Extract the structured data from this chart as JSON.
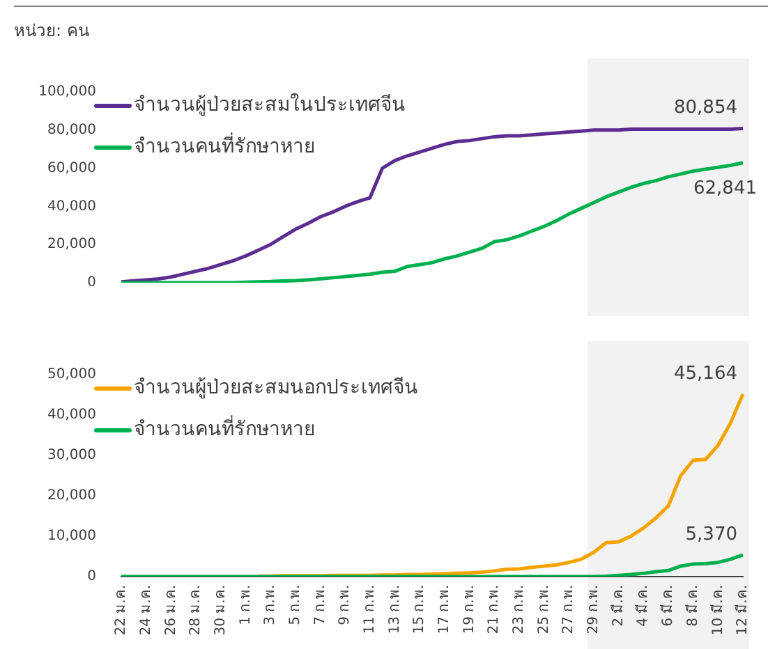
{
  "chart_data": [
    {
      "type": "line",
      "subtitle": "หน่วย: คน",
      "categories": [
        "22 ม.ค.",
        null,
        "24 ม.ค.",
        null,
        "26 ม.ค.",
        null,
        "28 ม.ค.",
        null,
        "30 ม.ค.",
        null,
        "1 ก.พ.",
        null,
        "3 ก.พ.",
        null,
        "5 ก.พ.",
        null,
        "7 ก.พ.",
        null,
        "9 ก.พ.",
        null,
        "11 ก.พ.",
        null,
        "13 ก.พ.",
        null,
        "15 ก.พ.",
        null,
        "17 ก.พ.",
        null,
        "19 ก.พ.",
        null,
        "21 ก.พ.",
        null,
        "23 ก.พ.",
        null,
        "25 ก.พ.",
        null,
        "27 ก.พ.",
        null,
        "29 ก.พ.",
        null,
        "2 มี.ค.",
        null,
        "4 มี.ค.",
        null,
        "6 มี.ค.",
        null,
        "8 มี.ค.",
        null,
        "10 มี.ค.",
        null,
        "12 มี.ค."
      ],
      "series": [
        {
          "name": "จำนวนผู้ป่วยสะสมในประเทศจีน",
          "color": "#5b2d90",
          "values": [
            500,
            1000,
            1500,
            2000,
            3000,
            4500,
            6000,
            7500,
            9500,
            11500,
            14000,
            17000,
            20000,
            24000,
            28000,
            31000,
            34500,
            37000,
            40000,
            42500,
            44500,
            60000,
            64000,
            66500,
            68500,
            70500,
            72500,
            74000,
            74500,
            75500,
            76500,
            77000,
            77000,
            77500,
            78000,
            78500,
            79000,
            79500,
            80000,
            80000,
            80000,
            80500,
            80500,
            80500,
            80500,
            80500,
            80500,
            80500,
            80500,
            80500,
            80854
          ],
          "value_labels": [
            null,
            null,
            null,
            null,
            null,
            null,
            null,
            null,
            null,
            null,
            null,
            null,
            null,
            null,
            null,
            null,
            null,
            null,
            null,
            null,
            null,
            null,
            null,
            null,
            null,
            null,
            null,
            null,
            null,
            null,
            null,
            null,
            null,
            null,
            null,
            null,
            null,
            null,
            null,
            null,
            null,
            null,
            null,
            null,
            null,
            null,
            null,
            null,
            null,
            null,
            "80,854"
          ]
        },
        {
          "name": "จำนวนคนที่รักษาหาย",
          "color": "#00b04f",
          "values": [
            0,
            0,
            0,
            0,
            0,
            0,
            0,
            0,
            0,
            0,
            300,
            500,
            600,
            900,
            1100,
            1500,
            2000,
            2600,
            3200,
            3800,
            4500,
            5500,
            6000,
            8500,
            9500,
            10500,
            12500,
            14000,
            16000,
            18000,
            21500,
            22500,
            24500,
            27000,
            29500,
            32500,
            36000,
            39000,
            42000,
            45000,
            47500,
            50000,
            52000,
            53500,
            55500,
            57000,
            58500,
            59500,
            60500,
            61500,
            62841
          ],
          "value_labels": [
            null,
            null,
            null,
            null,
            null,
            null,
            null,
            null,
            null,
            null,
            null,
            null,
            null,
            null,
            null,
            null,
            null,
            null,
            null,
            null,
            null,
            null,
            null,
            null,
            null,
            null,
            null,
            null,
            null,
            null,
            null,
            null,
            null,
            null,
            null,
            null,
            null,
            null,
            null,
            null,
            null,
            null,
            null,
            null,
            null,
            null,
            null,
            null,
            null,
            null,
            "62,841"
          ]
        }
      ],
      "ylim": [
        0,
        100000
      ],
      "yticks": [
        0,
        {
          "value": 20000,
          "label": "20,000"
        },
        {
          "value": 40000,
          "label": "40,000"
        },
        {
          "value": 60000,
          "label": "60,000"
        },
        {
          "value": 80000,
          "label": "80,000"
        },
        {
          "value": 100000,
          "label": "100,000"
        }
      ],
      "grid": false,
      "legend": "top left",
      "tick_labels": "y",
      "marker": "none",
      "line_style": "solid",
      "bands": [
        {
          "axis": "x",
          "from": "29 ก.พ.",
          "to": "12 มี.ค.",
          "color": "#f2f2f2"
        }
      ]
    },
    {
      "type": "line",
      "categories": [
        "22 ม.ค.",
        null,
        "24 ม.ค.",
        null,
        "26 ม.ค.",
        null,
        "28 ม.ค.",
        null,
        "30 ม.ค.",
        null,
        "1 ก.พ.",
        null,
        "3 ก.พ.",
        null,
        "5 ก.พ.",
        null,
        "7 ก.พ.",
        null,
        "9 ก.พ.",
        null,
        "11 ก.พ.",
        null,
        "13 ก.พ.",
        null,
        "15 ก.พ.",
        null,
        "17 ก.พ.",
        null,
        "19 ก.พ.",
        null,
        "21 ก.พ.",
        null,
        "23 ก.พ.",
        null,
        "25 ก.พ.",
        null,
        "27 ก.พ.",
        null,
        "29 ก.พ.",
        null,
        "2 มี.ค.",
        null,
        "4 มี.ค.",
        null,
        "6 มี.ค.",
        null,
        "8 มี.ค.",
        null,
        "10 มี.ค.",
        null,
        "12 มี.ค."
      ],
      "series": [
        {
          "name": "จำนวนผู้ป่วยสะสมนอกประเทศจีน",
          "color": "#f5a300",
          "values": [
            null,
            null,
            null,
            null,
            null,
            null,
            null,
            null,
            null,
            null,
            null,
            100,
            100,
            200,
            200,
            200,
            200,
            300,
            300,
            300,
            300,
            400,
            400,
            500,
            500,
            600,
            700,
            800,
            900,
            1100,
            1400,
            1800,
            1900,
            2300,
            2600,
            2900,
            3500,
            4300,
            6000,
            8400,
            8600,
            10000,
            12000,
            14500,
            17500,
            25000,
            28800,
            29000,
            32500,
            38000,
            45164
          ],
          "value_labels": [
            null,
            null,
            null,
            null,
            null,
            null,
            null,
            null,
            null,
            null,
            null,
            null,
            null,
            null,
            null,
            null,
            null,
            null,
            null,
            null,
            null,
            null,
            null,
            null,
            null,
            null,
            null,
            null,
            null,
            null,
            null,
            null,
            null,
            null,
            null,
            null,
            null,
            null,
            null,
            null,
            null,
            null,
            null,
            null,
            null,
            null,
            null,
            null,
            null,
            null,
            "45,164"
          ]
        },
        {
          "name": "จำนวนคนที่รักษาหาย",
          "color": "#00b04f",
          "values": [
            0,
            0,
            0,
            0,
            0,
            0,
            0,
            0,
            0,
            0,
            0,
            0,
            0,
            0,
            0,
            0,
            0,
            0,
            0,
            0,
            0,
            0,
            0,
            0,
            0,
            0,
            0,
            0,
            0,
            0,
            0,
            0,
            0,
            0,
            0,
            0,
            0,
            0,
            0,
            100,
            300,
            500,
            800,
            1200,
            1500,
            2600,
            3100,
            3200,
            3500,
            4300,
            5370
          ],
          "value_labels": [
            null,
            null,
            null,
            null,
            null,
            null,
            null,
            null,
            null,
            null,
            null,
            null,
            null,
            null,
            null,
            null,
            null,
            null,
            null,
            null,
            null,
            null,
            null,
            null,
            null,
            null,
            null,
            null,
            null,
            null,
            null,
            null,
            null,
            null,
            null,
            null,
            null,
            null,
            null,
            null,
            null,
            null,
            null,
            null,
            null,
            null,
            null,
            null,
            null,
            null,
            "5,370"
          ]
        }
      ],
      "ylim": [
        0,
        50000
      ],
      "yticks": [
        0,
        {
          "value": 10000,
          "label": "10,000"
        },
        {
          "value": 20000,
          "label": "20,000"
        },
        {
          "value": 30000,
          "label": "30,000"
        },
        {
          "value": 40000,
          "label": "40,000"
        },
        {
          "value": 50000,
          "label": "50,000"
        }
      ],
      "grid": false,
      "legend": "top left",
      "marker": "none",
      "line_style": "solid",
      "bands": [
        {
          "axis": "x",
          "from": "29 ก.พ.",
          "to": "12 มี.ค.",
          "color": "#f2f2f2"
        }
      ]
    }
  ]
}
